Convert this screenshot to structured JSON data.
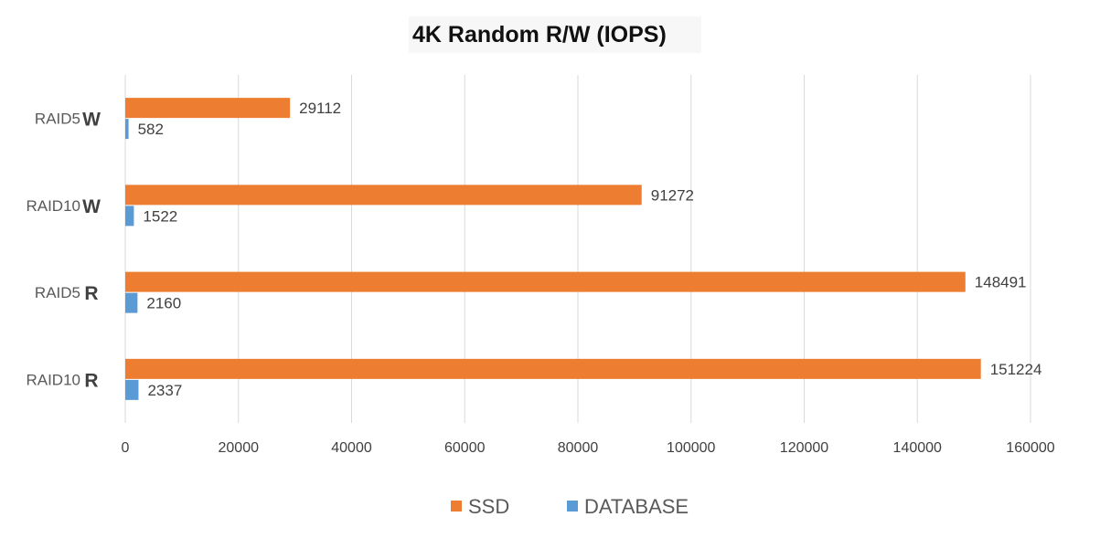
{
  "chart_data": {
    "type": "bar",
    "orientation": "horizontal",
    "title": "4K Random R/W (IOPS)",
    "categories": [
      {
        "name": "RAID5",
        "op": "W"
      },
      {
        "name": "RAID10",
        "op": "W"
      },
      {
        "name": "RAID5",
        "op": "R"
      },
      {
        "name": "RAID10",
        "op": "R"
      }
    ],
    "series": [
      {
        "name": "SSD",
        "color": "#ED7D31",
        "values": [
          29112,
          91272,
          148491,
          151224
        ]
      },
      {
        "name": "DATABASE",
        "color": "#5B9BD5",
        "values": [
          582,
          1522,
          2160,
          2337
        ]
      }
    ],
    "xlim": [
      0,
      160000
    ],
    "xticks": [
      "0",
      "20000",
      "40000",
      "60000",
      "80000",
      "100000",
      "120000",
      "140000",
      "160000"
    ],
    "grid": true,
    "legend_position": "bottom"
  }
}
